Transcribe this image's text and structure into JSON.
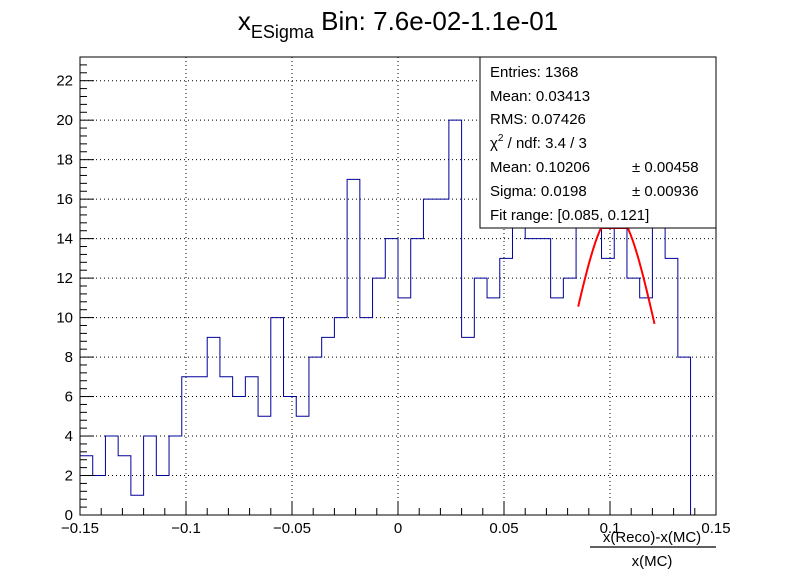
{
  "chart_data": {
    "type": "bar",
    "title_main": "x",
    "title_sub": "ESigma",
    "title_rest": " Bin: 7.6e-02-1.1e-01",
    "xlabel_num": "x(Reco)-x(MC)",
    "xlabel_den": "x(MC)",
    "ylabel": "",
    "xlim": [
      -0.15,
      0.15
    ],
    "ylim": [
      0,
      23.2
    ],
    "grid": true,
    "bin_width": 0.006,
    "x_ticks": [
      -0.15,
      -0.1,
      -0.05,
      0,
      0.05,
      0.1,
      0.15
    ],
    "x_tick_labels": [
      "−0.15",
      "−0.1",
      "−0.05",
      "0",
      "0.05",
      "0.1",
      "0.15"
    ],
    "y_ticks": [
      0,
      2,
      4,
      6,
      8,
      10,
      12,
      14,
      16,
      18,
      20,
      22
    ],
    "y_tick_labels": [
      "0",
      "2",
      "4",
      "6",
      "8",
      "10",
      "12",
      "14",
      "16",
      "18",
      "20",
      "22"
    ],
    "values": [
      3,
      2,
      4,
      3,
      1,
      4,
      2,
      4,
      7,
      7,
      9,
      7,
      6,
      7,
      5,
      10,
      6,
      5,
      8,
      9,
      10,
      17,
      10,
      12,
      14,
      11,
      14,
      16,
      16,
      20,
      9,
      12,
      11,
      13,
      15,
      14,
      14,
      11,
      12,
      15,
      15,
      13,
      15,
      12,
      11,
      15,
      13,
      8
    ],
    "fit": {
      "color": "#ff0000",
      "mean": 0.10206,
      "sigma": 0.0198,
      "amplitude": 15.3,
      "range": [
        0.085,
        0.121
      ]
    },
    "series_color": "#000099",
    "stats": {
      "entries": "Entries: 1368",
      "mean": "Mean: 0.03413",
      "rms": "RMS: 0.07426",
      "chi2": "χ",
      "chi2_sup": "2",
      "chi2_rest": " / ndf: 3.4 / 3",
      "fit_mean": "Mean: 0.10206",
      "fit_mean_err": "± 0.00458",
      "fit_sigma": "Sigma: 0.0198",
      "fit_sigma_err": "± 0.00936",
      "fit_range": "Fit range: [0.085, 0.121]"
    }
  }
}
